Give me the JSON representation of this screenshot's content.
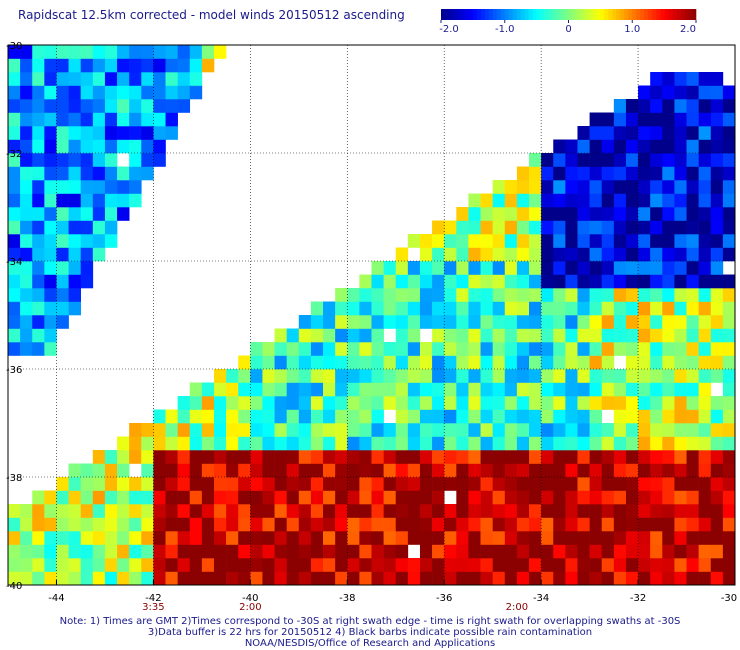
{
  "title": "Rapidscat 12.5km corrected - model winds 20150512 ascending",
  "colorbar": {
    "min": -2.0,
    "max": 2.0,
    "tick_labels": [
      "-2.0",
      "-1.0",
      "0",
      "1.0",
      "2.0"
    ],
    "tick_values": [
      -2.0,
      -1.0,
      0,
      1.0,
      2.0
    ],
    "colors": [
      "#00008b",
      "#0000ff",
      "#0080ff",
      "#00ffff",
      "#80ff80",
      "#ffff00",
      "#ff8000",
      "#ff0000",
      "#8b0000"
    ]
  },
  "chart_data": {
    "type": "heatmap",
    "title": "Rapidscat 12.5km corrected - model winds 20150512 ascending",
    "xlabel": "",
    "ylabel": "",
    "xlim": [
      -45,
      -30
    ],
    "ylim": [
      -40,
      -30
    ],
    "xticks": [
      -44,
      -42,
      -40,
      -38,
      -36,
      -34,
      -32,
      -30
    ],
    "xtick_labels": [
      "-44",
      "-42",
      "-40",
      "-38",
      "-36",
      "-34",
      "-32",
      "-30"
    ],
    "yticks": [
      -30,
      -32,
      -34,
      -36,
      -38,
      -40
    ],
    "ytick_labels": [
      "-30",
      "-32",
      "-34",
      "-36",
      "-38",
      "-40"
    ],
    "grid": true,
    "value_range": [
      -2.0,
      2.0
    ],
    "time_labels": [
      {
        "lon": -42,
        "text": "3:35"
      },
      {
        "lon": -40,
        "text": "2:00"
      },
      {
        "lon": -34.5,
        "text": "2:00"
      }
    ],
    "swaths": [
      {
        "name": "upper-left swath",
        "corners_lonlat": [
          [
            -45,
            -30
          ],
          [
            -40.5,
            -30
          ],
          [
            -44.2,
            -35.8
          ],
          [
            -45,
            -35.8
          ]
        ]
      },
      {
        "name": "main swath",
        "corners_lonlat": [
          [
            -45,
            -40
          ],
          [
            -30,
            -40
          ],
          [
            -30,
            -30.5
          ],
          [
            -31.5,
            -30.5
          ],
          [
            -45,
            -38.7
          ]
        ]
      }
    ],
    "regions": [
      {
        "description": "northeast of main swath",
        "lon_range": [
          -34,
          -30
        ],
        "lat_range": [
          -34.5,
          -30.5
        ],
        "approx_value": -1.6
      },
      {
        "description": "central band",
        "lon_range": [
          -40,
          -33
        ],
        "lat_range": [
          -37.5,
          -34
        ],
        "approx_value": -0.3
      },
      {
        "description": "south/southeast",
        "lon_range": [
          -42,
          -30
        ],
        "lat_range": [
          -40,
          -37.5
        ],
        "approx_value": 1.8
      },
      {
        "description": "upper-left swath",
        "lon_range": [
          -45,
          -41
        ],
        "lat_range": [
          -35.8,
          -30
        ],
        "approx_value": -0.9
      }
    ]
  },
  "notes": {
    "line1": "Note: 1) Times are GMT 2)Times correspond to -30S at right swath edge - time is right swath for overlapping swaths at -30S",
    "line2": "3)Data buffer is 22 hrs for 20150512 4) Black barbs indicate possible rain contamination",
    "line3": "NOAA/NESDIS/Office of Research and Applications"
  }
}
